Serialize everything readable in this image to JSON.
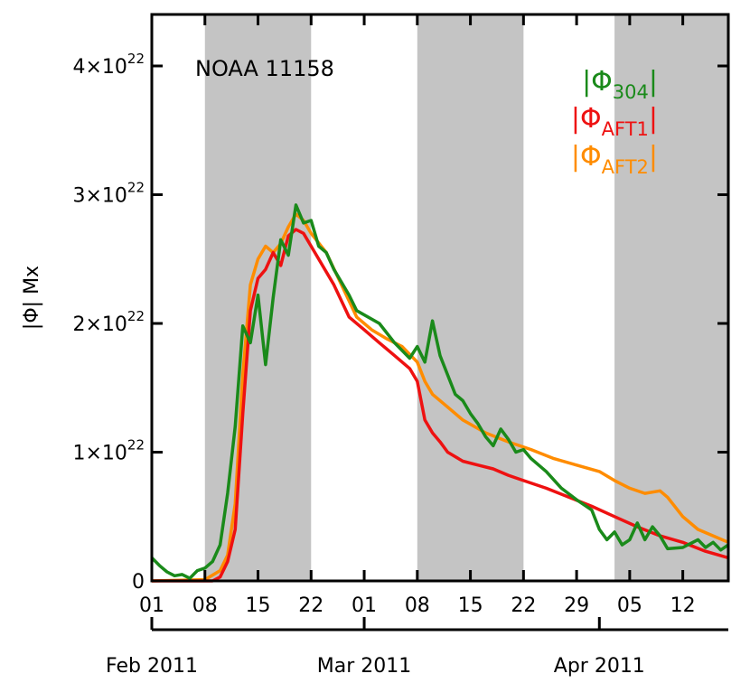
{
  "chart_data": {
    "type": "line",
    "title": "",
    "annotation": "NOAA 11158",
    "ylabel": "|Φ| Mx",
    "xlabel": "",
    "x_range": [
      "2011-02-01",
      "2011-04-18"
    ],
    "ylim": [
      0,
      4.4e+22
    ],
    "y_ticks": [
      {
        "value": 0,
        "label": "0"
      },
      {
        "value": 1e+22,
        "label": "1×10",
        "exp": "22"
      },
      {
        "value": 2e+22,
        "label": "2×10",
        "exp": "22"
      },
      {
        "value": 3e+22,
        "label": "3×10",
        "exp": "22"
      },
      {
        "value": 4e+22,
        "label": "4×10",
        "exp": "22"
      }
    ],
    "x_ticks": [
      {
        "date": "2011-02-01",
        "label": "01"
      },
      {
        "date": "2011-02-08",
        "label": "08"
      },
      {
        "date": "2011-02-15",
        "label": "15"
      },
      {
        "date": "2011-02-22",
        "label": "22"
      },
      {
        "date": "2011-03-01",
        "label": "01"
      },
      {
        "date": "2011-03-08",
        "label": "08"
      },
      {
        "date": "2011-03-15",
        "label": "15"
      },
      {
        "date": "2011-03-22",
        "label": "22"
      },
      {
        "date": "2011-03-29",
        "label": "29"
      },
      {
        "date": "2011-04-05",
        "label": "05"
      },
      {
        "date": "2011-04-12",
        "label": "12"
      }
    ],
    "months": [
      {
        "date": "2011-02-01",
        "label": "Feb 2011"
      },
      {
        "date": "2011-03-01",
        "label": "Mar 2011"
      },
      {
        "date": "2011-04-01",
        "label": "Apr 2011"
      }
    ],
    "shaded_intervals": [
      [
        "2011-02-08",
        "2011-02-22"
      ],
      [
        "2011-03-08",
        "2011-03-22"
      ],
      [
        "2011-04-03",
        "2011-04-18"
      ]
    ],
    "grid": false,
    "legend_position": "top-right",
    "series": [
      {
        "symbol": "|Φ",
        "subscript": "304",
        "color": "#1a8a1a",
        "points": [
          [
            "2011-02-01",
            1.8e+21
          ],
          [
            "2011-02-02",
            1.2e+21
          ],
          [
            "2011-02-03",
            7e+20
          ],
          [
            "2011-02-04",
            4e+20
          ],
          [
            "2011-02-05",
            5e+20
          ],
          [
            "2011-02-06",
            2e+20
          ],
          [
            "2011-02-07",
            8e+20
          ],
          [
            "2011-02-08",
            1e+21
          ],
          [
            "2011-02-09",
            1.5e+21
          ],
          [
            "2011-02-10",
            2.8e+21
          ],
          [
            "2011-02-11",
            6.8e+21
          ],
          [
            "2011-02-12",
            1.2e+22
          ],
          [
            "2011-02-13",
            1.98e+22
          ],
          [
            "2011-02-14",
            1.85e+22
          ],
          [
            "2011-02-15",
            2.22e+22
          ],
          [
            "2011-02-16",
            1.68e+22
          ],
          [
            "2011-02-17",
            2.2e+22
          ],
          [
            "2011-02-18",
            2.65e+22
          ],
          [
            "2011-02-19",
            2.53e+22
          ],
          [
            "2011-02-20",
            2.92e+22
          ],
          [
            "2011-02-21",
            2.78e+22
          ],
          [
            "2011-02-22",
            2.8e+22
          ],
          [
            "2011-02-23",
            2.6e+22
          ],
          [
            "2011-02-24",
            2.55e+22
          ],
          [
            "2011-02-25",
            2.42e+22
          ],
          [
            "2011-02-27",
            2.22e+22
          ],
          [
            "2011-02-28",
            2.1e+22
          ],
          [
            "2011-03-03",
            2e+22
          ],
          [
            "2011-03-05",
            1.85e+22
          ],
          [
            "2011-03-07",
            1.73e+22
          ],
          [
            "2011-03-08",
            1.82e+22
          ],
          [
            "2011-03-09",
            1.7e+22
          ],
          [
            "2011-03-10",
            2.02e+22
          ],
          [
            "2011-03-11",
            1.75e+22
          ],
          [
            "2011-03-12",
            1.6e+22
          ],
          [
            "2011-03-13",
            1.45e+22
          ],
          [
            "2011-03-14",
            1.4e+22
          ],
          [
            "2011-03-15",
            1.3e+22
          ],
          [
            "2011-03-16",
            1.22e+22
          ],
          [
            "2011-03-17",
            1.12e+22
          ],
          [
            "2011-03-18",
            1.05e+22
          ],
          [
            "2011-03-19",
            1.18e+22
          ],
          [
            "2011-03-20",
            1.1e+22
          ],
          [
            "2011-03-21",
            1e+22
          ],
          [
            "2011-03-22",
            1.02e+22
          ],
          [
            "2011-03-23",
            9.5e+21
          ],
          [
            "2011-03-25",
            8.5e+21
          ],
          [
            "2011-03-27",
            7.2e+21
          ],
          [
            "2011-03-29",
            6.3e+21
          ],
          [
            "2011-03-31",
            5.5e+21
          ],
          [
            "2011-04-01",
            4e+21
          ],
          [
            "2011-04-02",
            3.2e+21
          ],
          [
            "2011-04-03",
            3.8e+21
          ],
          [
            "2011-04-04",
            2.8e+21
          ],
          [
            "2011-04-05",
            3.2e+21
          ],
          [
            "2011-04-06",
            4.5e+21
          ],
          [
            "2011-04-07",
            3.2e+21
          ],
          [
            "2011-04-08",
            4.2e+21
          ],
          [
            "2011-04-09",
            3.5e+21
          ],
          [
            "2011-04-10",
            2.5e+21
          ],
          [
            "2011-04-12",
            2.6e+21
          ],
          [
            "2011-04-14",
            3.2e+21
          ],
          [
            "2011-04-15",
            2.6e+21
          ],
          [
            "2011-04-16",
            3e+21
          ],
          [
            "2011-04-17",
            2.4e+21
          ],
          [
            "2011-04-18",
            2.8e+21
          ]
        ]
      },
      {
        "symbol": "|Φ",
        "subscript": "AFT1",
        "color": "#ee1111",
        "points": [
          [
            "2011-02-01",
            0
          ],
          [
            "2011-02-09",
            0
          ],
          [
            "2011-02-10",
            3e+20
          ],
          [
            "2011-02-11",
            1.5e+21
          ],
          [
            "2011-02-12",
            4e+21
          ],
          [
            "2011-02-13",
            1.3e+22
          ],
          [
            "2011-02-14",
            2.1e+22
          ],
          [
            "2011-02-15",
            2.35e+22
          ],
          [
            "2011-02-16",
            2.42e+22
          ],
          [
            "2011-02-17",
            2.55e+22
          ],
          [
            "2011-02-18",
            2.45e+22
          ],
          [
            "2011-02-19",
            2.68e+22
          ],
          [
            "2011-02-20",
            2.73e+22
          ],
          [
            "2011-02-21",
            2.7e+22
          ],
          [
            "2011-02-22",
            2.6e+22
          ],
          [
            "2011-02-23",
            2.5e+22
          ],
          [
            "2011-02-25",
            2.3e+22
          ],
          [
            "2011-02-27",
            2.05e+22
          ],
          [
            "2011-03-01",
            1.95e+22
          ],
          [
            "2011-03-03",
            1.85e+22
          ],
          [
            "2011-03-05",
            1.75e+22
          ],
          [
            "2011-03-07",
            1.65e+22
          ],
          [
            "2011-03-08",
            1.55e+22
          ],
          [
            "2011-03-09",
            1.25e+22
          ],
          [
            "2011-03-10",
            1.15e+22
          ],
          [
            "2011-03-11",
            1.08e+22
          ],
          [
            "2011-03-12",
            1e+22
          ],
          [
            "2011-03-14",
            9.3e+21
          ],
          [
            "2011-03-16",
            9e+21
          ],
          [
            "2011-03-18",
            8.7e+21
          ],
          [
            "2011-03-20",
            8.2e+21
          ],
          [
            "2011-03-22",
            7.8e+21
          ],
          [
            "2011-03-25",
            7.2e+21
          ],
          [
            "2011-03-28",
            6.5e+21
          ],
          [
            "2011-03-31",
            5.8e+21
          ],
          [
            "2011-04-03",
            5e+21
          ],
          [
            "2011-04-06",
            4.2e+21
          ],
          [
            "2011-04-09",
            3.5e+21
          ],
          [
            "2011-04-12",
            3e+21
          ],
          [
            "2011-04-15",
            2.3e+21
          ],
          [
            "2011-04-18",
            1.8e+21
          ]
        ]
      },
      {
        "symbol": "|Φ",
        "subscript": "AFT2",
        "color": "#ff8c00",
        "points": [
          [
            "2011-02-01",
            0
          ],
          [
            "2011-02-08",
            1e+20
          ],
          [
            "2011-02-10",
            8e+20
          ],
          [
            "2011-02-11",
            2e+21
          ],
          [
            "2011-02-12",
            6e+21
          ],
          [
            "2011-02-13",
            1.6e+22
          ],
          [
            "2011-02-14",
            2.3e+22
          ],
          [
            "2011-02-15",
            2.5e+22
          ],
          [
            "2011-02-16",
            2.6e+22
          ],
          [
            "2011-02-17",
            2.55e+22
          ],
          [
            "2011-02-18",
            2.62e+22
          ],
          [
            "2011-02-19",
            2.75e+22
          ],
          [
            "2011-02-20",
            2.85e+22
          ],
          [
            "2011-02-21",
            2.8e+22
          ],
          [
            "2011-02-22",
            2.7e+22
          ],
          [
            "2011-02-24",
            2.55e+22
          ],
          [
            "2011-02-26",
            2.3e+22
          ],
          [
            "2011-02-28",
            2.05e+22
          ],
          [
            "2011-03-02",
            1.95e+22
          ],
          [
            "2011-03-04",
            1.88e+22
          ],
          [
            "2011-03-06",
            1.82e+22
          ],
          [
            "2011-03-08",
            1.7e+22
          ],
          [
            "2011-03-09",
            1.55e+22
          ],
          [
            "2011-03-10",
            1.45e+22
          ],
          [
            "2011-03-12",
            1.35e+22
          ],
          [
            "2011-03-14",
            1.25e+22
          ],
          [
            "2011-03-17",
            1.15e+22
          ],
          [
            "2011-03-20",
            1.08e+22
          ],
          [
            "2011-03-23",
            1.02e+22
          ],
          [
            "2011-03-26",
            9.5e+21
          ],
          [
            "2011-03-29",
            9e+21
          ],
          [
            "2011-04-01",
            8.5e+21
          ],
          [
            "2011-04-03",
            7.8e+21
          ],
          [
            "2011-04-05",
            7.2e+21
          ],
          [
            "2011-04-07",
            6.8e+21
          ],
          [
            "2011-04-09",
            7e+21
          ],
          [
            "2011-04-10",
            6.5e+21
          ],
          [
            "2011-04-12",
            5e+21
          ],
          [
            "2011-04-14",
            4e+21
          ],
          [
            "2011-04-16",
            3.5e+21
          ],
          [
            "2011-04-18",
            3e+21
          ]
        ]
      }
    ]
  }
}
